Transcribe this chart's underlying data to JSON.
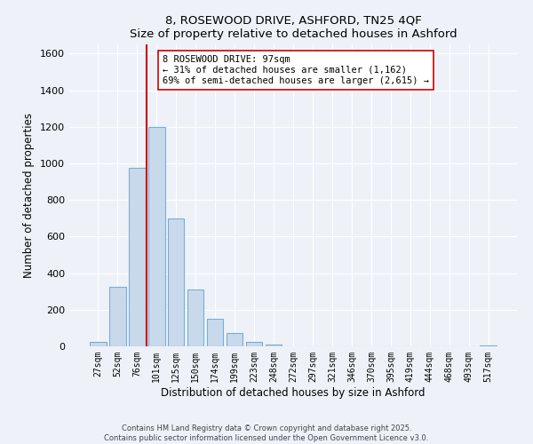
{
  "title": "8, ROSEWOOD DRIVE, ASHFORD, TN25 4QF",
  "subtitle": "Size of property relative to detached houses in Ashford",
  "xlabel": "Distribution of detached houses by size in Ashford",
  "ylabel": "Number of detached properties",
  "bar_labels": [
    "27sqm",
    "52sqm",
    "76sqm",
    "101sqm",
    "125sqm",
    "150sqm",
    "174sqm",
    "199sqm",
    "223sqm",
    "248sqm",
    "272sqm",
    "297sqm",
    "321sqm",
    "346sqm",
    "370sqm",
    "395sqm",
    "419sqm",
    "444sqm",
    "468sqm",
    "493sqm",
    "517sqm"
  ],
  "bar_values": [
    25,
    325,
    975,
    1200,
    700,
    310,
    150,
    75,
    22,
    10,
    0,
    0,
    0,
    0,
    0,
    0,
    0,
    0,
    0,
    0,
    5
  ],
  "bar_color": "#c9d9ec",
  "bar_edgecolor": "#7aadd4",
  "ylim": [
    0,
    1650
  ],
  "yticks": [
    0,
    200,
    400,
    600,
    800,
    1000,
    1200,
    1400,
    1600
  ],
  "vline_color": "#cc0000",
  "annotation_title": "8 ROSEWOOD DRIVE: 97sqm",
  "annotation_line1": "← 31% of detached houses are smaller (1,162)",
  "annotation_line2": "69% of semi-detached houses are larger (2,615) →",
  "annotation_box_color": "#ffffff",
  "annotation_box_edgecolor": "#cc0000",
  "footer1": "Contains HM Land Registry data © Crown copyright and database right 2025.",
  "footer2": "Contains public sector information licensed under the Open Government Licence v3.0.",
  "bg_color": "#eef2f8",
  "plot_bg_color": "#eef2f8",
  "grid_color": "#ffffff"
}
